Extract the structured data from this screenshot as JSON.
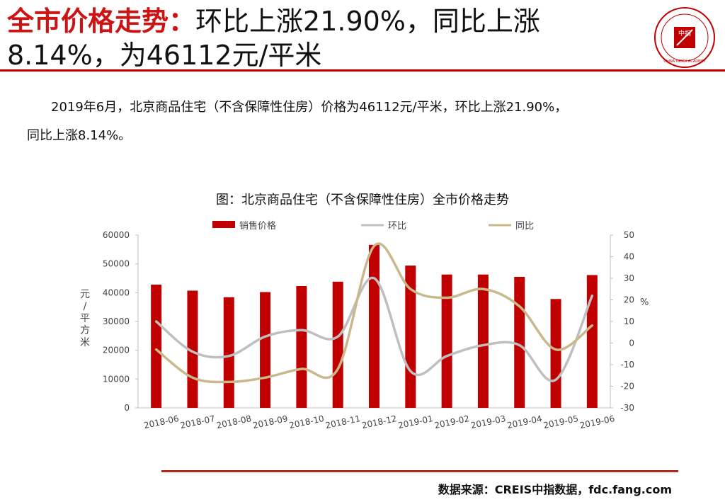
{
  "header": {
    "title_lead": "全市价格走势：",
    "title_rest": "环比上涨21.90%，同比上涨8.14%，为46112元/平米",
    "logo_text": "CHINA INDEX ACADEMY",
    "logo_center": "中指"
  },
  "body": {
    "line1": "2019年6月，北京商品住宅（不含保障性住房）价格为46112元/平米，环比上涨21.90%，",
    "line2": "同比上涨8.14%。"
  },
  "chart_data": {
    "type": "bar",
    "title": "图：北京商品住宅（不含保障性住房）全市价格走势",
    "categories": [
      "2018-06",
      "2018-07",
      "2018-08",
      "2018-09",
      "2018-10",
      "2018-11",
      "2018-12",
      "2019-01",
      "2019-02",
      "2019-03",
      "2019-04",
      "2019-05",
      "2019-06"
    ],
    "series": [
      {
        "name": "销售价格",
        "kind": "bar",
        "axis": "left",
        "color": "#c00000",
        "values": [
          42800,
          40700,
          38400,
          40200,
          42300,
          43800,
          56600,
          49400,
          46300,
          46300,
          45500,
          37800,
          46112
        ]
      },
      {
        "name": "环比",
        "kind": "line",
        "axis": "right",
        "color": "#bfbfbf",
        "values": [
          10,
          -4,
          -6,
          3,
          6,
          3,
          30,
          -13,
          -6,
          -1,
          -1,
          -17,
          21.9
        ]
      },
      {
        "name": "同比",
        "kind": "line",
        "axis": "right",
        "color": "#c8b98d",
        "values": [
          -3,
          -16,
          -18,
          -16,
          -12,
          -12,
          45,
          25,
          21,
          25,
          17,
          -3,
          8.14
        ]
      }
    ],
    "ylabel": "元/平方米",
    "y2label": "%",
    "ylim": [
      0,
      60000
    ],
    "y2lim": [
      -30,
      50
    ],
    "yticks": [
      "0",
      "10000",
      "20000",
      "30000",
      "40000",
      "50000",
      "60000"
    ],
    "y2ticks": [
      "-30",
      "-20",
      "-10",
      "0",
      "10",
      "20",
      "30",
      "40",
      "50"
    ],
    "legend_position": "top",
    "grid": false
  },
  "footer": {
    "source": "数据来源：CREIS中指数据，fdc.fang.com"
  },
  "colors": {
    "accent_red": "#c00000",
    "title_red": "#cc1414",
    "rule_brown": "#b22a1c"
  }
}
